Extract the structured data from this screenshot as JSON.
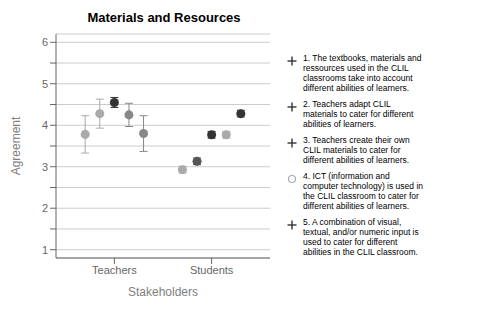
{
  "chart_data": {
    "type": "scatter",
    "title": "Materials and Resources",
    "xlabel": "Stakeholders",
    "ylabel": "Agreement",
    "categories": [
      "Teachers",
      "Students"
    ],
    "ylim": [
      0.8,
      6.2
    ],
    "yticks": [
      1,
      {
        "value": 1.5,
        "label": ""
      },
      2,
      {
        "value": 2.5,
        "label": ""
      },
      3,
      {
        "value": 3.5,
        "label": ""
      },
      4,
      {
        "value": 4.5,
        "label": ""
      },
      5,
      {
        "value": 5.5,
        "label": ""
      },
      6
    ],
    "grid": true,
    "legend": "right",
    "series": [
      {
        "name": "1. The textbooks, materials and\nressources used in the CLIL\nclassrooms take into account\ndifferent abilities of learners.",
        "color": "#333333",
        "marker": "plus",
        "colors": [
          "#aaaaaa",
          "#aaaaaa"
        ],
        "values": [
          3.78,
          2.93
        ],
        "errors": [
          0.45,
          0.08
        ]
      },
      {
        "name": "2. Teachers adapt CLIL\nmaterials to cater for different\nabilities of learners.",
        "color": "#333333",
        "marker": "plus",
        "colors": [
          "#aaaaaa",
          "#555555"
        ],
        "values": [
          4.28,
          3.13
        ],
        "errors": [
          0.35,
          0.08
        ]
      },
      {
        "name": "3. Teachers create their own\nCLIL materials to cater for\ndifferent abilities of learners.",
        "color": "#333333",
        "marker": "plus",
        "colors": [
          "#333333",
          "#333333"
        ],
        "values": [
          4.55,
          3.77
        ],
        "errors": [
          0.12,
          0.08
        ]
      },
      {
        "name": "4. ICT (information and\ncomputer technology) is used in\nthe CLIL classroom to cater for\ndifferent abilities of learners.",
        "color": "#aaaaaa",
        "marker": "circle",
        "colors": [
          "#888888",
          "#aaaaaa"
        ],
        "values": [
          4.25,
          3.77
        ],
        "errors": [
          0.28,
          0.08
        ]
      },
      {
        "name": "5. A combination of visual,\ntextual, and/or numeric input is\nused to cater for different\nabilities in the CLIL classroom.",
        "color": "#333333",
        "marker": "plus",
        "colors": [
          "#888888",
          "#333333"
        ],
        "values": [
          3.8,
          4.28
        ],
        "errors": [
          0.43,
          0.08
        ]
      }
    ]
  }
}
